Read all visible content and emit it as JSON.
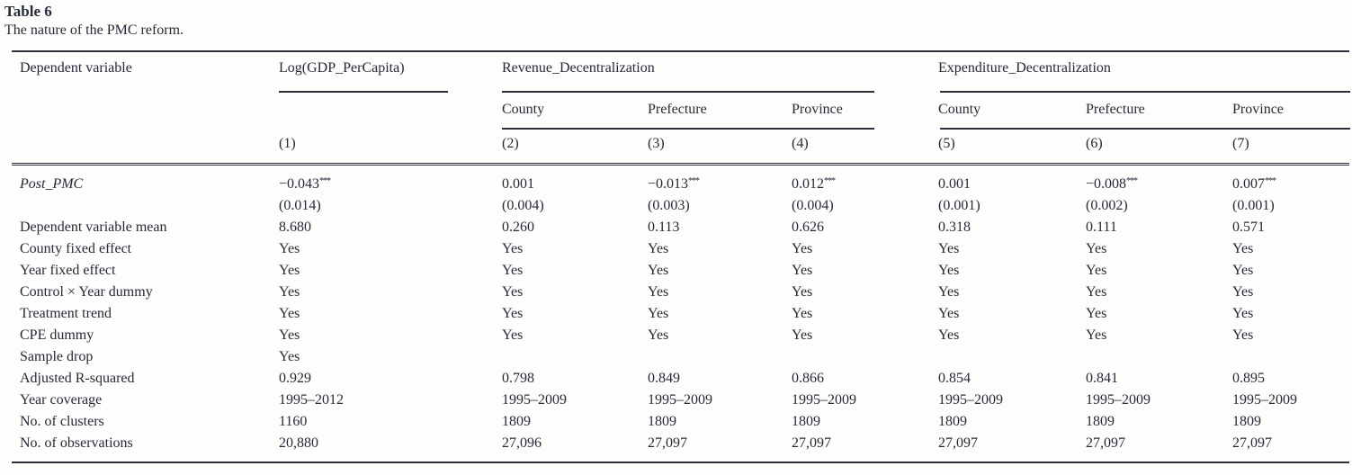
{
  "title": "Table 6",
  "caption": "The nature of the PMC reform.",
  "table": {
    "dep_var_label": "Dependent variable",
    "groups": [
      {
        "label": "Log(GDP_PerCapita)",
        "subcolumns": []
      },
      {
        "label": "Revenue_Decentralization",
        "subcolumns": [
          "County",
          "Prefecture",
          "Province"
        ]
      },
      {
        "label": "Expenditure_Decentralization",
        "subcolumns": [
          "County",
          "Prefecture",
          "Province"
        ]
      }
    ],
    "column_numbers": [
      "(1)",
      "(2)",
      "(3)",
      "(4)",
      "(5)",
      "(6)",
      "(7)"
    ],
    "rows": [
      {
        "label": "Post_PMC",
        "italic": true,
        "values": [
          "−0.043***",
          "0.001",
          "−0.013***",
          "0.012***",
          "0.001",
          "−0.008***",
          "0.007***"
        ]
      },
      {
        "label": "",
        "italic": false,
        "values": [
          "(0.014)",
          "(0.004)",
          "(0.003)",
          "(0.004)",
          "(0.001)",
          "(0.002)",
          "(0.001)"
        ]
      },
      {
        "label": "Dependent variable mean",
        "italic": false,
        "values": [
          "8.680",
          "0.260",
          "0.113",
          "0.626",
          "0.318",
          "0.111",
          "0.571"
        ]
      },
      {
        "label": "County fixed effect",
        "italic": false,
        "values": [
          "Yes",
          "Yes",
          "Yes",
          "Yes",
          "Yes",
          "Yes",
          "Yes"
        ]
      },
      {
        "label": "Year fixed effect",
        "italic": false,
        "values": [
          "Yes",
          "Yes",
          "Yes",
          "Yes",
          "Yes",
          "Yes",
          "Yes"
        ]
      },
      {
        "label": "Control × Year dummy",
        "italic": false,
        "values": [
          "Yes",
          "Yes",
          "Yes",
          "Yes",
          "Yes",
          "Yes",
          "Yes"
        ]
      },
      {
        "label": "Treatment trend",
        "italic": false,
        "values": [
          "Yes",
          "Yes",
          "Yes",
          "Yes",
          "Yes",
          "Yes",
          "Yes"
        ]
      },
      {
        "label": "CPE dummy",
        "italic": false,
        "values": [
          "Yes",
          "Yes",
          "Yes",
          "Yes",
          "Yes",
          "Yes",
          "Yes"
        ]
      },
      {
        "label": "Sample drop",
        "italic": false,
        "values": [
          "Yes",
          "",
          "",
          "",
          "",
          "",
          ""
        ]
      },
      {
        "label": "Adjusted R-squared",
        "italic": false,
        "values": [
          "0.929",
          "0.798",
          "0.849",
          "0.866",
          "0.854",
          "0.841",
          "0.895"
        ]
      },
      {
        "label": "Year coverage",
        "italic": false,
        "values": [
          "1995–2012",
          "1995–2009",
          "1995–2009",
          "1995–2009",
          "1995–2009",
          "1995–2009",
          "1995–2009"
        ]
      },
      {
        "label": "No. of clusters",
        "italic": false,
        "values": [
          "1160",
          "1809",
          "1809",
          "1809",
          "1809",
          "1809",
          "1809"
        ]
      },
      {
        "label": "No. of observations",
        "italic": false,
        "values": [
          "20,880",
          "27,096",
          "27,097",
          "27,097",
          "27,097",
          "27,097",
          "27,097"
        ]
      }
    ]
  },
  "colors": {
    "text": "#262a38",
    "rule": "#2b2e38",
    "background": "#fdfdfc"
  }
}
